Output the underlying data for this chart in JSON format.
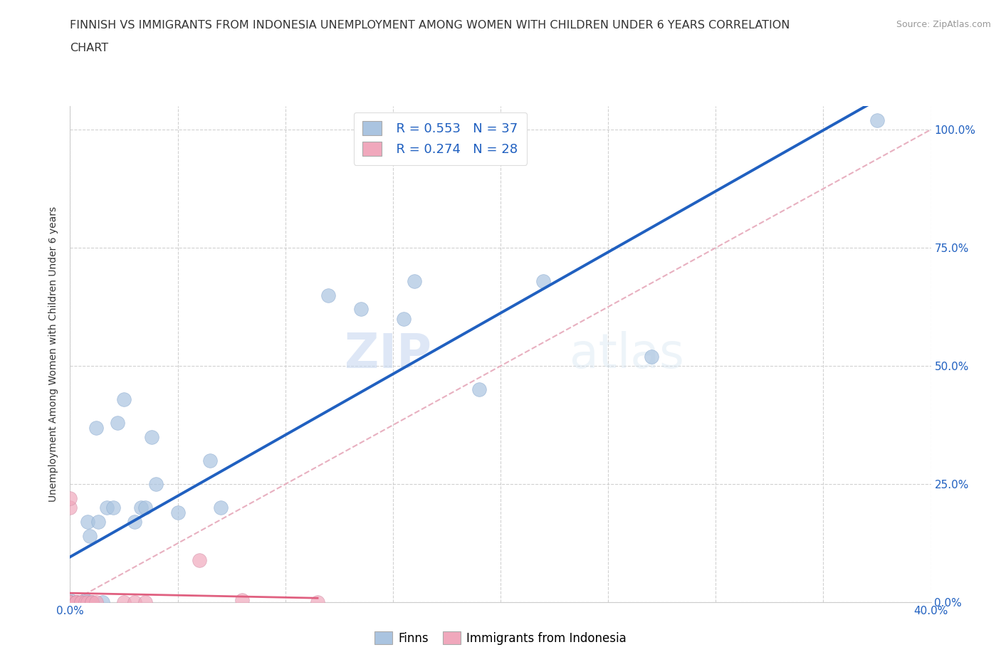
{
  "title_line1": "FINNISH VS IMMIGRANTS FROM INDONESIA UNEMPLOYMENT AMONG WOMEN WITH CHILDREN UNDER 6 YEARS CORRELATION",
  "title_line2": "CHART",
  "source": "Source: ZipAtlas.com",
  "ylabel": "Unemployment Among Women with Children Under 6 years",
  "xlim": [
    0.0,
    0.4
  ],
  "ylim": [
    0.0,
    1.05
  ],
  "x_ticks": [
    0.0,
    0.05,
    0.1,
    0.15,
    0.2,
    0.25,
    0.3,
    0.35,
    0.4
  ],
  "x_tick_labels": [
    "0.0%",
    "",
    "",
    "",
    "",
    "",
    "",
    "",
    "40.0%"
  ],
  "y_tick_labels": [
    "0.0%",
    "25.0%",
    "50.0%",
    "75.0%",
    "100.0%"
  ],
  "y_ticks": [
    0.0,
    0.25,
    0.5,
    0.75,
    1.0
  ],
  "background_color": "#ffffff",
  "grid_color": "#cccccc",
  "watermark_zip": "ZIP",
  "watermark_atlas": "atlas",
  "legend_R1": "R = 0.553",
  "legend_N1": "N = 37",
  "legend_R2": "R = 0.274",
  "legend_N2": "N = 28",
  "finns_color": "#aac4e0",
  "immigrants_color": "#f0a8bc",
  "trendline_finns_color": "#2060c0",
  "trendline_immigrants_color": "#e06080",
  "diagonal_color": "#e8b0c0",
  "finns_x": [
    0.0,
    0.0,
    0.0,
    0.0,
    0.0,
    0.003,
    0.003,
    0.005,
    0.005,
    0.007,
    0.008,
    0.008,
    0.009,
    0.01,
    0.012,
    0.013,
    0.015,
    0.017,
    0.02,
    0.022,
    0.025,
    0.03,
    0.033,
    0.035,
    0.038,
    0.04,
    0.05,
    0.065,
    0.07,
    0.12,
    0.135,
    0.155,
    0.16,
    0.19,
    0.22,
    0.27,
    0.375
  ],
  "finns_y": [
    0.0,
    0.0,
    0.0,
    0.0,
    0.005,
    0.0,
    0.0,
    0.0,
    0.0,
    0.005,
    0.0,
    0.17,
    0.14,
    0.0,
    0.37,
    0.17,
    0.0,
    0.2,
    0.2,
    0.38,
    0.43,
    0.17,
    0.2,
    0.2,
    0.35,
    0.25,
    0.19,
    0.3,
    0.2,
    0.65,
    0.62,
    0.6,
    0.68,
    0.45,
    0.68,
    0.52,
    1.02
  ],
  "immigrants_x": [
    0.0,
    0.0,
    0.0,
    0.0,
    0.0,
    0.0,
    0.0,
    0.0,
    0.0,
    0.0,
    0.003,
    0.003,
    0.003,
    0.003,
    0.003,
    0.005,
    0.005,
    0.007,
    0.008,
    0.01,
    0.01,
    0.012,
    0.025,
    0.03,
    0.035,
    0.06,
    0.08,
    0.115
  ],
  "immigrants_y": [
    0.0,
    0.0,
    0.0,
    0.0,
    0.0,
    0.0,
    0.0,
    0.0,
    0.2,
    0.22,
    0.0,
    0.0,
    0.0,
    0.0,
    0.0,
    0.0,
    0.0,
    0.0,
    0.0,
    0.0,
    0.0,
    0.0,
    0.0,
    0.0,
    0.0,
    0.09,
    0.005,
    0.0
  ]
}
